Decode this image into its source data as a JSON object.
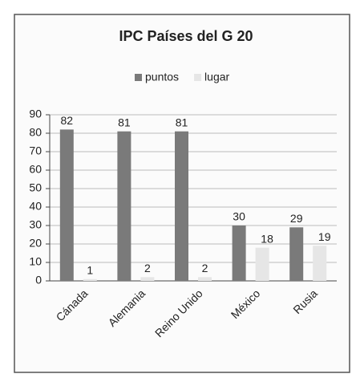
{
  "chart_data": {
    "type": "bar",
    "title": "IPC Países del G 20",
    "categories": [
      "Cánada",
      "Alemania",
      "Reino Unido",
      "México",
      "Rusia"
    ],
    "series": [
      {
        "name": "puntos",
        "color": "#7a7a7a",
        "values": [
          82,
          81,
          81,
          30,
          29
        ]
      },
      {
        "name": "lugar",
        "color": "#e6e6e6",
        "values": [
          1,
          2,
          2,
          18,
          19
        ]
      }
    ],
    "ylim": [
      0,
      90
    ],
    "yticks": [
      0,
      10,
      20,
      30,
      40,
      50,
      60,
      70,
      80,
      90
    ],
    "grid": true,
    "legend": "top"
  }
}
